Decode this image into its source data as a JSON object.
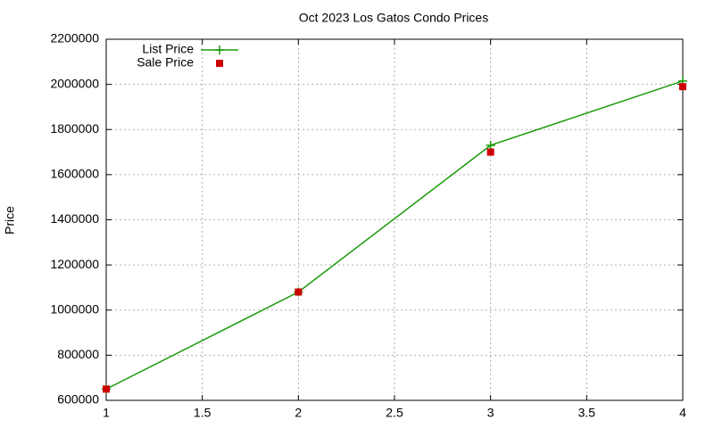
{
  "chart_data": {
    "type": "line",
    "title": "Oct 2023 Los Gatos Condo Prices",
    "y_label": "Price",
    "x": [
      1,
      2,
      3,
      4
    ],
    "series": [
      {
        "name": "List Price",
        "color": "#1a9a0a",
        "mode": "linespoints",
        "values": [
          650000,
          1080000,
          1730000,
          2015000
        ]
      },
      {
        "name": "Sale Price",
        "color": "#cc0000",
        "mode": "points",
        "values": [
          650000,
          1080000,
          1700000,
          1990000
        ]
      }
    ],
    "xlim": [
      1,
      4
    ],
    "xticks": [
      1,
      1.5,
      2,
      2.5,
      3,
      3.5,
      4
    ],
    "ylim": [
      600000,
      2200000
    ],
    "yticks": [
      600000,
      800000,
      1000000,
      1200000,
      1400000,
      1600000,
      1800000,
      2000000,
      2200000
    ],
    "grid": true,
    "legend": "top-left"
  }
}
